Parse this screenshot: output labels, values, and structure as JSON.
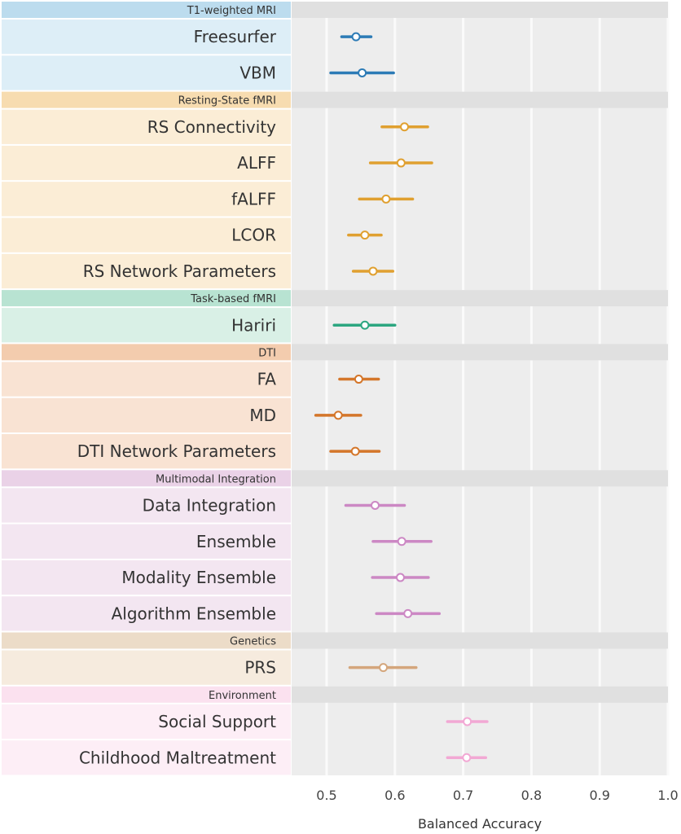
{
  "chart_data": {
    "type": "forest",
    "xlabel": "Balanced Accuracy",
    "xlim": [
      0.45,
      1.0
    ],
    "xticks": [
      0.5,
      0.6,
      0.7,
      0.8,
      0.9,
      1.0
    ],
    "xtick_labels": [
      "0.5",
      "0.6",
      "0.7",
      "0.8",
      "0.9",
      "1.0"
    ],
    "grid": true,
    "groups": [
      {
        "name": "T1-weighted MRI",
        "color": "#2c7bb6",
        "band_color": "#ddeef7",
        "header_color": "#bcdcee",
        "rows": [
          {
            "label": "Freesurfer",
            "mean": 0.543,
            "low": 0.522,
            "high": 0.565
          },
          {
            "label": "VBM",
            "mean": 0.552,
            "low": 0.506,
            "high": 0.598
          }
        ]
      },
      {
        "name": "Resting-State fMRI",
        "color": "#e0a030",
        "band_color": "#fbedd6",
        "header_color": "#f7dcb0",
        "rows": [
          {
            "label": "RS Connectivity",
            "mean": 0.614,
            "low": 0.581,
            "high": 0.648
          },
          {
            "label": "ALFF",
            "mean": 0.609,
            "low": 0.564,
            "high": 0.654
          },
          {
            "label": "fALFF",
            "mean": 0.587,
            "low": 0.548,
            "high": 0.626
          },
          {
            "label": "LCOR",
            "mean": 0.556,
            "low": 0.532,
            "high": 0.58
          },
          {
            "label": "RS Network Parameters",
            "mean": 0.568,
            "low": 0.539,
            "high": 0.597
          }
        ]
      },
      {
        "name": "Task-based fMRI",
        "color": "#2ca680",
        "band_color": "#d9f0e6",
        "header_color": "#b8e3d2",
        "rows": [
          {
            "label": "Hariri",
            "mean": 0.556,
            "low": 0.511,
            "high": 0.6
          }
        ]
      },
      {
        "name": "DTI",
        "color": "#d4762a",
        "band_color": "#f9e3d3",
        "header_color": "#f3ccae",
        "rows": [
          {
            "label": "FA",
            "mean": 0.547,
            "low": 0.519,
            "high": 0.576
          },
          {
            "label": "MD",
            "mean": 0.517,
            "low": 0.484,
            "high": 0.55
          },
          {
            "label": "DTI Network Parameters",
            "mean": 0.542,
            "low": 0.506,
            "high": 0.577
          }
        ]
      },
      {
        "name": "Multimodal Integration",
        "color": "#cc88c4",
        "band_color": "#f3e6f1",
        "header_color": "#ead2e7",
        "rows": [
          {
            "label": "Data Integration",
            "mean": 0.571,
            "low": 0.528,
            "high": 0.614
          },
          {
            "label": "Ensemble",
            "mean": 0.61,
            "low": 0.568,
            "high": 0.653
          },
          {
            "label": "Modality Ensemble",
            "mean": 0.608,
            "low": 0.567,
            "high": 0.649
          },
          {
            "label": "Algorithm Ensemble",
            "mean": 0.619,
            "low": 0.573,
            "high": 0.665
          }
        ]
      },
      {
        "name": "Genetics",
        "color": "#d4a67c",
        "band_color": "#f6ebde",
        "header_color": "#ecdcc8",
        "rows": [
          {
            "label": "PRS",
            "mean": 0.583,
            "low": 0.534,
            "high": 0.631
          }
        ]
      },
      {
        "name": "Environment",
        "color": "#f2a8d4",
        "band_color": "#fdeef6",
        "header_color": "#fbe1ef",
        "rows": [
          {
            "label": "Social Support",
            "mean": 0.706,
            "low": 0.677,
            "high": 0.735
          },
          {
            "label": "Childhood Maltreatment",
            "mean": 0.705,
            "low": 0.677,
            "high": 0.733
          }
        ]
      }
    ]
  }
}
